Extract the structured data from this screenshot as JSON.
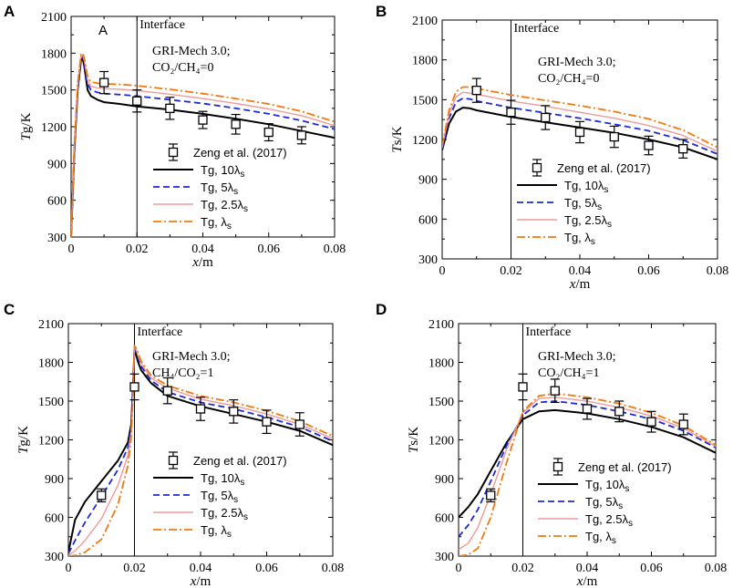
{
  "colors": {
    "tg10": "#000000",
    "tg5": "#1e2ad6",
    "tg25": "#f09a9a",
    "tg1": "#f07a10",
    "frame": "#000000"
  },
  "chart_data": [
    {
      "type": "line",
      "panel": "A",
      "title": "",
      "inner_label": "A",
      "xlabel": "x/m",
      "ylabel": "Tg/K",
      "xlim": [
        0,
        0.08
      ],
      "ylim": [
        300,
        2100
      ],
      "xticks": [
        "0",
        "0.02",
        "0.04",
        "0.06",
        "0.08"
      ],
      "yticks": [
        "300",
        "600",
        "900",
        "1200",
        "1500",
        "1800",
        "2100"
      ],
      "interface_x": 0.02,
      "interface_label": "Interface",
      "annotation": [
        "GRI-Mech 3.0;",
        "CO₂/CH₄=0"
      ],
      "legend_position": "lower-center",
      "scatter_name": "Zeng et al. (2017)",
      "experiment": {
        "x": [
          0.01,
          0.02,
          0.03,
          0.04,
          0.05,
          0.06,
          0.07
        ],
        "y": [
          1560,
          1410,
          1350,
          1255,
          1220,
          1155,
          1130
        ],
        "err": [
          90,
          90,
          90,
          70,
          80,
          70,
          70
        ]
      },
      "series": [
        {
          "name": "Tg, 10λs",
          "style": "tg10",
          "x": [
            0,
            0.001,
            0.002,
            0.003,
            0.0035,
            0.004,
            0.005,
            0.006,
            0.008,
            0.01,
            0.015,
            0.02,
            0.03,
            0.04,
            0.05,
            0.06,
            0.07,
            0.08
          ],
          "y": [
            300,
            1000,
            1500,
            1740,
            1760,
            1690,
            1500,
            1450,
            1420,
            1400,
            1385,
            1365,
            1340,
            1305,
            1265,
            1220,
            1165,
            1110
          ]
        },
        {
          "name": "Tg, 5λs",
          "style": "tg5",
          "x": [
            0,
            0.001,
            0.002,
            0.003,
            0.0035,
            0.004,
            0.005,
            0.006,
            0.008,
            0.01,
            0.015,
            0.02,
            0.03,
            0.04,
            0.05,
            0.06,
            0.07,
            0.08
          ],
          "y": [
            300,
            1020,
            1520,
            1760,
            1775,
            1720,
            1550,
            1500,
            1480,
            1470,
            1462,
            1450,
            1420,
            1390,
            1350,
            1305,
            1250,
            1180
          ]
        },
        {
          "name": "Tg, 2.5λs",
          "style": "tg25",
          "x": [
            0,
            0.001,
            0.002,
            0.003,
            0.0035,
            0.004,
            0.005,
            0.006,
            0.008,
            0.01,
            0.015,
            0.02,
            0.03,
            0.04,
            0.05,
            0.06,
            0.07,
            0.08
          ],
          "y": [
            300,
            1030,
            1530,
            1775,
            1785,
            1740,
            1580,
            1530,
            1515,
            1510,
            1505,
            1495,
            1465,
            1430,
            1390,
            1345,
            1290,
            1210
          ]
        },
        {
          "name": "Tg, λs",
          "style": "tg1",
          "x": [
            0,
            0.001,
            0.002,
            0.003,
            0.0035,
            0.004,
            0.005,
            0.006,
            0.008,
            0.01,
            0.015,
            0.02,
            0.03,
            0.04,
            0.05,
            0.06,
            0.07,
            0.08
          ],
          "y": [
            300,
            1050,
            1550,
            1790,
            1800,
            1760,
            1610,
            1565,
            1555,
            1550,
            1545,
            1535,
            1505,
            1470,
            1430,
            1385,
            1325,
            1240
          ]
        }
      ]
    },
    {
      "type": "line",
      "panel": "B",
      "title": "",
      "inner_label": "",
      "xlabel": "x/m",
      "ylabel": "Ts/K",
      "xlim": [
        0,
        0.08
      ],
      "ylim": [
        300,
        2100
      ],
      "xticks": [
        "0",
        "0.02",
        "0.04",
        "0.06",
        "0.08"
      ],
      "yticks": [
        "300",
        "600",
        "900",
        "1200",
        "1500",
        "1800",
        "2100"
      ],
      "interface_x": 0.02,
      "interface_label": "Interface",
      "annotation": [
        "GRI-Mech 3.0;",
        "CO₂/CH₄=0"
      ],
      "legend_position": "lower-center",
      "scatter_name": "Zeng et al. (2017)",
      "experiment": {
        "x": [
          0.01,
          0.02,
          0.03,
          0.04,
          0.05,
          0.06,
          0.07
        ],
        "y": [
          1570,
          1405,
          1365,
          1255,
          1220,
          1155,
          1130
        ],
        "err": [
          90,
          90,
          90,
          80,
          80,
          70,
          70
        ]
      },
      "series": [
        {
          "name": "Tg, 10λs",
          "style": "tg10",
          "x": [
            0,
            0.002,
            0.004,
            0.006,
            0.008,
            0.01,
            0.015,
            0.02,
            0.03,
            0.04,
            0.05,
            0.06,
            0.07,
            0.08
          ],
          "y": [
            1120,
            1320,
            1410,
            1440,
            1435,
            1420,
            1395,
            1370,
            1330,
            1290,
            1250,
            1200,
            1140,
            1050
          ]
        },
        {
          "name": "Tg, 5λs",
          "style": "tg5",
          "x": [
            0,
            0.002,
            0.004,
            0.006,
            0.008,
            0.01,
            0.015,
            0.02,
            0.03,
            0.04,
            0.05,
            0.06,
            0.07,
            0.08
          ],
          "y": [
            1130,
            1360,
            1480,
            1510,
            1505,
            1490,
            1465,
            1440,
            1400,
            1360,
            1315,
            1265,
            1195,
            1090
          ]
        },
        {
          "name": "Tg, 2.5λs",
          "style": "tg25",
          "x": [
            0,
            0.002,
            0.004,
            0.006,
            0.008,
            0.01,
            0.015,
            0.02,
            0.03,
            0.04,
            0.05,
            0.06,
            0.07,
            0.08
          ],
          "y": [
            1140,
            1390,
            1520,
            1555,
            1550,
            1540,
            1515,
            1490,
            1450,
            1405,
            1360,
            1305,
            1230,
            1110
          ]
        },
        {
          "name": "Tg, λs",
          "style": "tg1",
          "x": [
            0,
            0.002,
            0.004,
            0.006,
            0.008,
            0.01,
            0.015,
            0.02,
            0.03,
            0.04,
            0.05,
            0.06,
            0.07,
            0.08
          ],
          "y": [
            1150,
            1420,
            1560,
            1595,
            1595,
            1585,
            1560,
            1535,
            1495,
            1455,
            1410,
            1355,
            1270,
            1140
          ]
        }
      ]
    },
    {
      "type": "line",
      "panel": "C",
      "title": "",
      "inner_label": "",
      "xlabel": "x/m",
      "ylabel": "Tg/K",
      "xlim": [
        0,
        0.08
      ],
      "ylim": [
        300,
        2100
      ],
      "xticks": [
        "0",
        "0.02",
        "0.04",
        "0.06",
        "0.08"
      ],
      "yticks": [
        "300",
        "600",
        "900",
        "1200",
        "1500",
        "1800",
        "2100"
      ],
      "interface_x": 0.02,
      "interface_label": "Interface",
      "annotation": [
        "GRI-Mech 3.0;",
        "CH₄/CO₂=1"
      ],
      "legend_position": "lower-center",
      "scatter_name": "Zeng et al. (2017)",
      "experiment": {
        "x": [
          0.01,
          0.02,
          0.03,
          0.04,
          0.05,
          0.06,
          0.07
        ],
        "y": [
          770,
          1610,
          1580,
          1440,
          1420,
          1340,
          1320
        ],
        "err": [
          50,
          100,
          100,
          90,
          90,
          90,
          90
        ]
      },
      "series": [
        {
          "name": "Tg, 10λs",
          "style": "tg10",
          "x": [
            0,
            0.002,
            0.005,
            0.01,
            0.015,
            0.018,
            0.019,
            0.0195,
            0.02,
            0.0205,
            0.021,
            0.022,
            0.025,
            0.03,
            0.04,
            0.05,
            0.06,
            0.07,
            0.08
          ],
          "y": [
            330,
            580,
            720,
            880,
            1040,
            1180,
            1320,
            1580,
            1900,
            1860,
            1810,
            1740,
            1640,
            1540,
            1460,
            1400,
            1340,
            1270,
            1160
          ]
        },
        {
          "name": "Tg, 5λs",
          "style": "tg5",
          "x": [
            0,
            0.002,
            0.005,
            0.01,
            0.015,
            0.018,
            0.019,
            0.0195,
            0.02,
            0.0205,
            0.021,
            0.022,
            0.025,
            0.03,
            0.04,
            0.05,
            0.06,
            0.07,
            0.08
          ],
          "y": [
            320,
            420,
            560,
            760,
            970,
            1140,
            1280,
            1550,
            1910,
            1880,
            1840,
            1770,
            1660,
            1570,
            1490,
            1440,
            1375,
            1300,
            1190
          ]
        },
        {
          "name": "Tg, 2.5λs",
          "style": "tg25",
          "x": [
            0,
            0.002,
            0.005,
            0.01,
            0.015,
            0.018,
            0.019,
            0.0195,
            0.02,
            0.0205,
            0.021,
            0.022,
            0.025,
            0.03,
            0.04,
            0.05,
            0.06,
            0.07,
            0.08
          ],
          "y": [
            305,
            340,
            420,
            590,
            850,
            1080,
            1260,
            1530,
            1920,
            1900,
            1860,
            1790,
            1680,
            1600,
            1515,
            1465,
            1400,
            1320,
            1210
          ]
        },
        {
          "name": "Tg, λs",
          "style": "tg1",
          "x": [
            0,
            0.002,
            0.005,
            0.01,
            0.015,
            0.018,
            0.019,
            0.0195,
            0.02,
            0.0205,
            0.021,
            0.022,
            0.025,
            0.03,
            0.04,
            0.05,
            0.06,
            0.07,
            0.08
          ],
          "y": [
            300,
            305,
            330,
            430,
            700,
            1000,
            1220,
            1500,
            1930,
            1910,
            1880,
            1810,
            1700,
            1620,
            1540,
            1490,
            1425,
            1345,
            1230
          ]
        }
      ]
    },
    {
      "type": "line",
      "panel": "D",
      "title": "",
      "inner_label": "",
      "xlabel": "x/m",
      "ylabel": "Ts/K",
      "xlim": [
        0,
        0.08
      ],
      "ylim": [
        300,
        2100
      ],
      "xticks": [
        "0",
        "0.02",
        "0.04",
        "0.06",
        "0.08"
      ],
      "yticks": [
        "300",
        "600",
        "900",
        "1200",
        "1500",
        "1800",
        "2100"
      ],
      "interface_x": 0.02,
      "interface_label": "Interface",
      "annotation": [
        "GRI-Mech 3.0;",
        "CO₂/CH₄=1"
      ],
      "legend_position": "lower-center",
      "scatter_name": "Zeng et al. (2017)",
      "experiment": {
        "x": [
          0.01,
          0.02,
          0.03,
          0.04,
          0.05,
          0.06,
          0.07
        ],
        "y": [
          770,
          1610,
          1580,
          1440,
          1420,
          1340,
          1320
        ],
        "err": [
          50,
          100,
          90,
          80,
          80,
          80,
          80
        ]
      },
      "series": [
        {
          "name": "Tg, 10λs",
          "style": "tg10",
          "x": [
            0,
            0.003,
            0.006,
            0.01,
            0.015,
            0.02,
            0.025,
            0.03,
            0.04,
            0.05,
            0.06,
            0.07,
            0.08
          ],
          "y": [
            600,
            680,
            780,
            960,
            1180,
            1360,
            1420,
            1430,
            1405,
            1360,
            1300,
            1220,
            1100
          ]
        },
        {
          "name": "Tg, 5λs",
          "style": "tg5",
          "x": [
            0,
            0.003,
            0.006,
            0.01,
            0.015,
            0.02,
            0.025,
            0.03,
            0.04,
            0.05,
            0.06,
            0.07,
            0.08
          ],
          "y": [
            450,
            540,
            660,
            880,
            1160,
            1390,
            1490,
            1500,
            1470,
            1420,
            1360,
            1270,
            1140
          ]
        },
        {
          "name": "Tg, 2.5λs",
          "style": "tg25",
          "x": [
            0,
            0.003,
            0.006,
            0.01,
            0.015,
            0.02,
            0.025,
            0.03,
            0.04,
            0.05,
            0.06,
            0.07,
            0.08
          ],
          "y": [
            350,
            400,
            520,
            780,
            1130,
            1410,
            1520,
            1530,
            1500,
            1450,
            1385,
            1290,
            1150
          ]
        },
        {
          "name": "Tg, λs",
          "style": "tg1",
          "x": [
            0,
            0.003,
            0.006,
            0.01,
            0.015,
            0.02,
            0.025,
            0.03,
            0.04,
            0.05,
            0.06,
            0.07,
            0.08
          ],
          "y": [
            300,
            310,
            360,
            600,
            1030,
            1420,
            1540,
            1560,
            1530,
            1480,
            1410,
            1310,
            1160
          ]
        }
      ]
    }
  ]
}
